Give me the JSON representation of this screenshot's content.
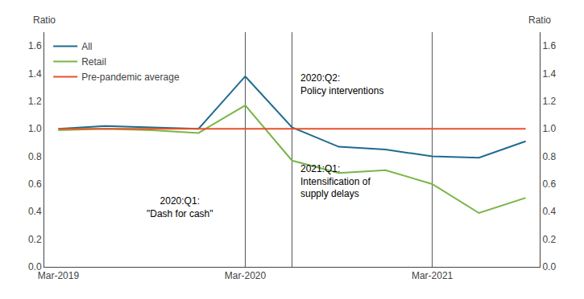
{
  "chart_data": {
    "type": "line",
    "x": [
      0,
      1,
      2,
      3,
      4,
      5,
      6,
      7,
      8,
      9,
      10
    ],
    "series": [
      {
        "name": "All",
        "color": "#1f6b8e",
        "values": [
          1.0,
          1.02,
          1.01,
          1.0,
          1.38,
          1.01,
          0.87,
          0.85,
          0.8,
          0.79,
          0.91
        ]
      },
      {
        "name": "Retail",
        "color": "#7ab648",
        "values": [
          0.99,
          1.0,
          0.99,
          0.97,
          1.17,
          0.77,
          0.68,
          0.7,
          0.6,
          0.39,
          0.5
        ]
      },
      {
        "name": "Pre-pandemic average",
        "color": "#e8502a",
        "values": [
          1.0,
          1.0,
          1.0,
          1.0,
          1.0,
          1.0,
          1.0,
          1.0,
          1.0,
          1.0,
          1.0
        ]
      }
    ],
    "xlim": [
      -0.3,
      10.3
    ],
    "xticks": [
      {
        "value": 0,
        "label": "Mar-2019"
      },
      {
        "value": 4,
        "label": "Mar-2020"
      },
      {
        "value": 8,
        "label": "Mar-2021"
      }
    ],
    "ylim": [
      0.0,
      1.7
    ],
    "yticks": [
      {
        "value": 0.0,
        "label": "0.0"
      },
      0.2,
      0.4,
      0.6,
      0.8,
      {
        "value": 1.0,
        "label": "1.0"
      },
      1.2,
      1.4,
      1.6
    ],
    "y2lim": [
      0.0,
      1.7
    ],
    "y2ticks": [
      {
        "value": 0.0,
        "label": "0.0"
      },
      0.2,
      0.4,
      0.6,
      0.8,
      {
        "value": 1.0,
        "label": "1.0"
      },
      1.2,
      1.4,
      1.6
    ],
    "ylabel": "Ratio",
    "y2label": "Ratio",
    "vlines": [
      4,
      5,
      8
    ],
    "annotations": [
      {
        "text": "2020:Q1:\n\"Dash for cash\"",
        "x": 2.6,
        "y": 0.33
      },
      {
        "text": "2020:Q2:\nPolicy interventions",
        "x": 5.15,
        "y": 1.42
      },
      {
        "text": "2021:Q1:\nIntensification of\nsupply delays",
        "x": 5.15,
        "y": 0.48
      }
    ],
    "legend": "upper left",
    "grid": false
  }
}
